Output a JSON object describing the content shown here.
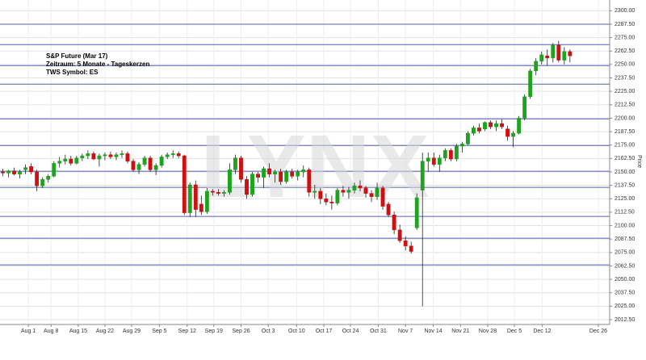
{
  "chart_data": {
    "type": "candlestick",
    "annotations": [
      "S&P Future (Mar 17)",
      "Zeitraum: 5 Monate - Tageskerzen",
      "TWS Symbol: ES"
    ],
    "watermark": "LYNX",
    "y_label": "Price",
    "up_color": "#1fa31f",
    "down_color": "#cc1111",
    "level_color": "#5560b0",
    "grid": true,
    "open": [
      2150,
      2149,
      2151,
      2148,
      2152,
      2155,
      2150,
      2137,
      2143,
      2146,
      2158,
      2160,
      2162,
      2158,
      2163,
      2165,
      2167,
      2162,
      2165,
      2166,
      2164,
      2166,
      2167,
      2160,
      2152,
      2157,
      2163,
      2152,
      2156,
      2164,
      2166,
      2167,
      2165,
      2112,
      2138,
      2120,
      2113,
      2132,
      2131,
      2130,
      2131,
      2152,
      2163,
      2143,
      2129,
      2148,
      2145,
      2153,
      2148,
      2150,
      2141,
      2150,
      2146,
      2150,
      2152,
      2131,
      2132,
      2125,
      2122,
      2121,
      2133,
      2131,
      2133,
      2137,
      2135,
      2130,
      2127,
      2135,
      2120,
      2110,
      2096,
      2086,
      2081,
      2098,
      2133,
      2160,
      2163,
      2157,
      2163,
      2170,
      2162,
      2174,
      2176,
      2186,
      2191,
      2190,
      2196,
      2192,
      2195,
      2190,
      2183,
      2186,
      2200,
      2220,
      2244,
      2253,
      2258,
      2256,
      2268,
      2254,
      2262
    ],
    "high": [
      2153,
      2152,
      2154,
      2152,
      2157,
      2158,
      2152,
      2145,
      2148,
      2160,
      2164,
      2166,
      2165,
      2165,
      2167,
      2170,
      2169,
      2167,
      2168,
      2169,
      2168,
      2170,
      2169,
      2162,
      2159,
      2165,
      2165,
      2158,
      2166,
      2168,
      2170,
      2169,
      2166,
      2140,
      2142,
      2128,
      2135,
      2134,
      2134,
      2133,
      2158,
      2166,
      2165,
      2146,
      2150,
      2150,
      2155,
      2158,
      2152,
      2153,
      2152,
      2153,
      2152,
      2156,
      2154,
      2138,
      2135,
      2130,
      2128,
      2135,
      2137,
      2136,
      2140,
      2142,
      2137,
      2133,
      2140,
      2137,
      2122,
      2113,
      2101,
      2090,
      2085,
      2130,
      2168,
      2168,
      2168,
      2166,
      2172,
      2172,
      2176,
      2178,
      2188,
      2193,
      2195,
      2197,
      2198,
      2198,
      2199,
      2193,
      2188,
      2202,
      2222,
      2246,
      2256,
      2262,
      2264,
      2270,
      2272,
      2266,
      2264
    ],
    "low": [
      2146,
      2145,
      2147,
      2144,
      2148,
      2148,
      2132,
      2135,
      2140,
      2145,
      2154,
      2157,
      2156,
      2157,
      2160,
      2162,
      2161,
      2155,
      2161,
      2162,
      2161,
      2163,
      2158,
      2150,
      2148,
      2155,
      2150,
      2147,
      2154,
      2162,
      2163,
      2163,
      2110,
      2108,
      2108,
      2110,
      2111,
      2128,
      2128,
      2127,
      2129,
      2148,
      2140,
      2125,
      2127,
      2140,
      2135,
      2145,
      2140,
      2138,
      2139,
      2144,
      2142,
      2145,
      2127,
      2125,
      2120,
      2119,
      2115,
      2119,
      2127,
      2125,
      2130,
      2132,
      2126,
      2122,
      2124,
      2115,
      2108,
      2092,
      2084,
      2077,
      2074,
      2096,
      2025,
      2150,
      2155,
      2150,
      2160,
      2160,
      2160,
      2168,
      2175,
      2184,
      2186,
      2188,
      2190,
      2188,
      2190,
      2179,
      2173,
      2185,
      2198,
      2218,
      2240,
      2250,
      2249,
      2252,
      2252,
      2250,
      2252
    ],
    "close": [
      2149,
      2151,
      2148,
      2150,
      2154,
      2150,
      2137,
      2143,
      2146,
      2158,
      2160,
      2162,
      2158,
      2163,
      2165,
      2167,
      2162,
      2165,
      2166,
      2164,
      2166,
      2167,
      2160,
      2152,
      2157,
      2163,
      2152,
      2156,
      2164,
      2166,
      2167,
      2165,
      2112,
      2138,
      2115,
      2113,
      2132,
      2131,
      2130,
      2131,
      2152,
      2163,
      2143,
      2129,
      2148,
      2145,
      2153,
      2148,
      2150,
      2141,
      2150,
      2146,
      2150,
      2152,
      2131,
      2132,
      2125,
      2122,
      2121,
      2133,
      2131,
      2133,
      2137,
      2135,
      2130,
      2127,
      2135,
      2118,
      2110,
      2096,
      2086,
      2081,
      2076,
      2126,
      2160,
      2163,
      2157,
      2163,
      2170,
      2162,
      2174,
      2176,
      2186,
      2191,
      2188,
      2196,
      2192,
      2195,
      2192,
      2183,
      2186,
      2200,
      2220,
      2244,
      2253,
      2259,
      2256,
      2268,
      2254,
      2262,
      2258
    ],
    "levels": [
      2287.5,
      2268.5,
      2249,
      2231.7,
      2199.4,
      2174.6,
      2150.6,
      2135.6,
      2108.6,
      2088.3,
      2063.5
    ],
    "xlim": [
      -0.5,
      107
    ],
    "xticks": [
      {
        "value": 4.5,
        "label": "Aug 1"
      },
      {
        "value": 8.5,
        "label": "Aug 8"
      },
      {
        "value": 13.3,
        "label": "Aug 15"
      },
      {
        "value": 18,
        "label": "Aug 22"
      },
      {
        "value": 22.7,
        "label": "Aug 29"
      },
      {
        "value": 27.6,
        "label": "Sep 5"
      },
      {
        "value": 32.5,
        "label": "Sep 12"
      },
      {
        "value": 37.2,
        "label": "Sep 19"
      },
      {
        "value": 42,
        "label": "Sep 26"
      },
      {
        "value": 46.8,
        "label": "Oct 3"
      },
      {
        "value": 51.8,
        "label": "Oct 10"
      },
      {
        "value": 56.6,
        "label": "Oct 17"
      },
      {
        "value": 61.3,
        "label": "Oct 24"
      },
      {
        "value": 66.2,
        "label": "Oct 31"
      },
      {
        "value": 71,
        "label": "Nov 7"
      },
      {
        "value": 75.9,
        "label": "Nov 14"
      },
      {
        "value": 80.7,
        "label": "Nov 21"
      },
      {
        "value": 85.5,
        "label": "Nov 28"
      },
      {
        "value": 90.2,
        "label": "Dec 5"
      },
      {
        "value": 95.1,
        "label": "Dec 12"
      },
      {
        "value": 105,
        "label": "Dec 26"
      }
    ],
    "ylim": [
      2008,
      2310
    ],
    "yticks": [
      {
        "value": 2012.5,
        "label": "2012.50"
      },
      {
        "value": 2025,
        "label": "2025.00"
      },
      {
        "value": 2037.5,
        "label": "2037.50"
      },
      {
        "value": 2050,
        "label": "2050.00"
      },
      {
        "value": 2062.5,
        "label": "2062.50"
      },
      {
        "value": 2075,
        "label": "2075.00"
      },
      {
        "value": 2087.5,
        "label": "2087.50"
      },
      {
        "value": 2100,
        "label": "2100.00"
      },
      {
        "value": 2112.5,
        "label": "2112.50"
      },
      {
        "value": 2125,
        "label": "2125.00"
      },
      {
        "value": 2137.5,
        "label": "2137.50"
      },
      {
        "value": 2150,
        "label": "2150.00"
      },
      {
        "value": 2162.5,
        "label": "2162.50"
      },
      {
        "value": 2175,
        "label": "2175.00"
      },
      {
        "value": 2187.5,
        "label": "2187.50"
      },
      {
        "value": 2200,
        "label": "2200.00"
      },
      {
        "value": 2212.5,
        "label": "2212.50"
      },
      {
        "value": 2225,
        "label": "2225.00"
      },
      {
        "value": 2237.5,
        "label": "2237.50"
      },
      {
        "value": 2250,
        "label": "2250.00"
      },
      {
        "value": 2262.5,
        "label": "2262.50"
      },
      {
        "value": 2275,
        "label": "2275.00"
      },
      {
        "value": 2287.5,
        "label": "2287.50"
      },
      {
        "value": 2300,
        "label": "2300.00"
      }
    ]
  }
}
